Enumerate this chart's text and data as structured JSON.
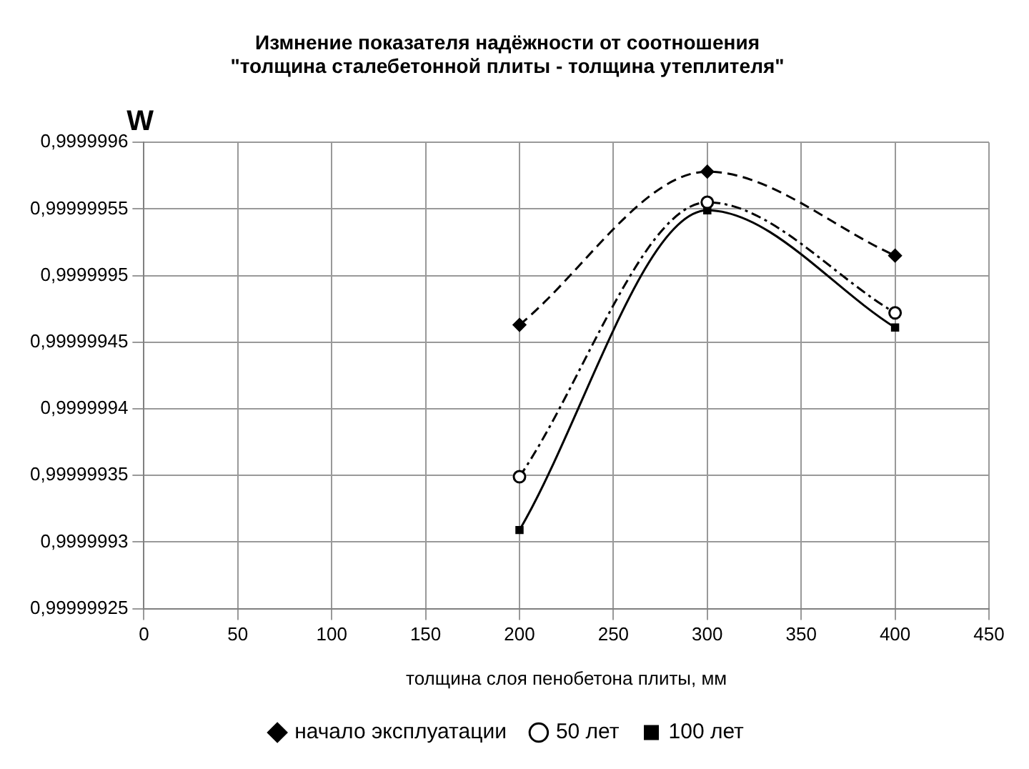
{
  "chart_data": {
    "type": "line",
    "title": [
      "Измнение показателя надёжности от соотношения",
      "\"толщина сталебетонной плиты - толщина утеплителя\""
    ],
    "xlabel": "толщина слоя пенобетона плиты, мм",
    "ylabel": "W",
    "x": [
      200,
      300,
      400
    ],
    "series": [
      {
        "name": "начало эксплуатации",
        "color": "#000000",
        "marker": "diamond",
        "line_style": "dashed",
        "values": [
          0.999999463,
          0.999999578,
          0.999999515
        ]
      },
      {
        "name": "50 лет",
        "color": "#000000",
        "marker": "circle",
        "line_style": "dashdot",
        "values": [
          0.999999349,
          0.999999555,
          0.999999472
        ]
      },
      {
        "name": "100 лет",
        "color": "#000000",
        "marker": "square",
        "line_style": "solid",
        "values": [
          0.999999309,
          0.999999549,
          0.999999461
        ]
      }
    ],
    "xlim": [
      0,
      450
    ],
    "xticks": [
      0,
      50,
      100,
      150,
      200,
      250,
      300,
      350,
      400,
      450
    ],
    "ylim": [
      0.99999925,
      0.9999996
    ],
    "yticks": [
      {
        "value": 0.99999925,
        "label": "0,99999925"
      },
      {
        "value": 0.9999993,
        "label": "0,9999993"
      },
      {
        "value": 0.99999935,
        "label": "0,99999935"
      },
      {
        "value": 0.9999994,
        "label": "0,9999994"
      },
      {
        "value": 0.99999945,
        "label": "0,99999945"
      },
      {
        "value": 0.9999995,
        "label": "0,9999995"
      },
      {
        "value": 0.99999955,
        "label": "0,99999955"
      },
      {
        "value": 0.9999996,
        "label": "0,9999996"
      }
    ],
    "grid": true,
    "legend": "bottom"
  }
}
